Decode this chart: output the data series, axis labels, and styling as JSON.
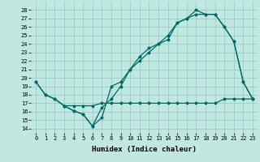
{
  "xlabel": "Humidex (Indice chaleur)",
  "bg_color": "#c0e8e0",
  "grid_color": "#90c8c0",
  "line_color": "#006868",
  "xlim": [
    -0.5,
    23.5
  ],
  "ylim": [
    13.5,
    29
  ],
  "yticks": [
    14,
    15,
    16,
    17,
    18,
    19,
    20,
    21,
    22,
    23,
    24,
    25,
    26,
    27,
    28
  ],
  "xticks": [
    0,
    1,
    2,
    3,
    4,
    5,
    6,
    7,
    8,
    9,
    10,
    11,
    12,
    13,
    14,
    15,
    16,
    17,
    18,
    19,
    20,
    21,
    22,
    23
  ],
  "line1_x": [
    0,
    1,
    2,
    3,
    4,
    5,
    6,
    7,
    8,
    9,
    10,
    11,
    12,
    13,
    14,
    15,
    16,
    17,
    18,
    19,
    20,
    21,
    22,
    23
  ],
  "line1_y": [
    19.5,
    18.0,
    17.5,
    16.7,
    16.1,
    15.7,
    14.3,
    15.3,
    19.0,
    19.5,
    21.0,
    22.5,
    23.5,
    24.0,
    25.0,
    26.5,
    27.0,
    28.0,
    27.5,
    27.5,
    26.0,
    24.3,
    19.5,
    17.5
  ],
  "line2_x": [
    0,
    1,
    2,
    3,
    4,
    5,
    6,
    7,
    8,
    9,
    10,
    11,
    12,
    13,
    14,
    15,
    16,
    17,
    18,
    19,
    20,
    21,
    22,
    23
  ],
  "line2_y": [
    19.5,
    18.0,
    17.5,
    16.7,
    16.1,
    15.7,
    14.3,
    16.5,
    17.5,
    19.0,
    21.0,
    22.0,
    23.0,
    24.0,
    24.5,
    26.5,
    27.0,
    27.5,
    27.5,
    27.5,
    26.0,
    24.3,
    19.5,
    17.5
  ],
  "line3_x": [
    3,
    4,
    5,
    6,
    7,
    8,
    9,
    10,
    11,
    12,
    13,
    14,
    15,
    16,
    17,
    18,
    19,
    20,
    21,
    22,
    23
  ],
  "line3_y": [
    16.7,
    16.7,
    16.7,
    16.7,
    17.0,
    17.0,
    17.0,
    17.0,
    17.0,
    17.0,
    17.0,
    17.0,
    17.0,
    17.0,
    17.0,
    17.0,
    17.0,
    17.5,
    17.5,
    17.5,
    17.5
  ],
  "marker": "*",
  "markersize": 2.5,
  "linewidth": 0.9,
  "tick_labelsize": 5,
  "xlabel_fontsize": 6.5
}
